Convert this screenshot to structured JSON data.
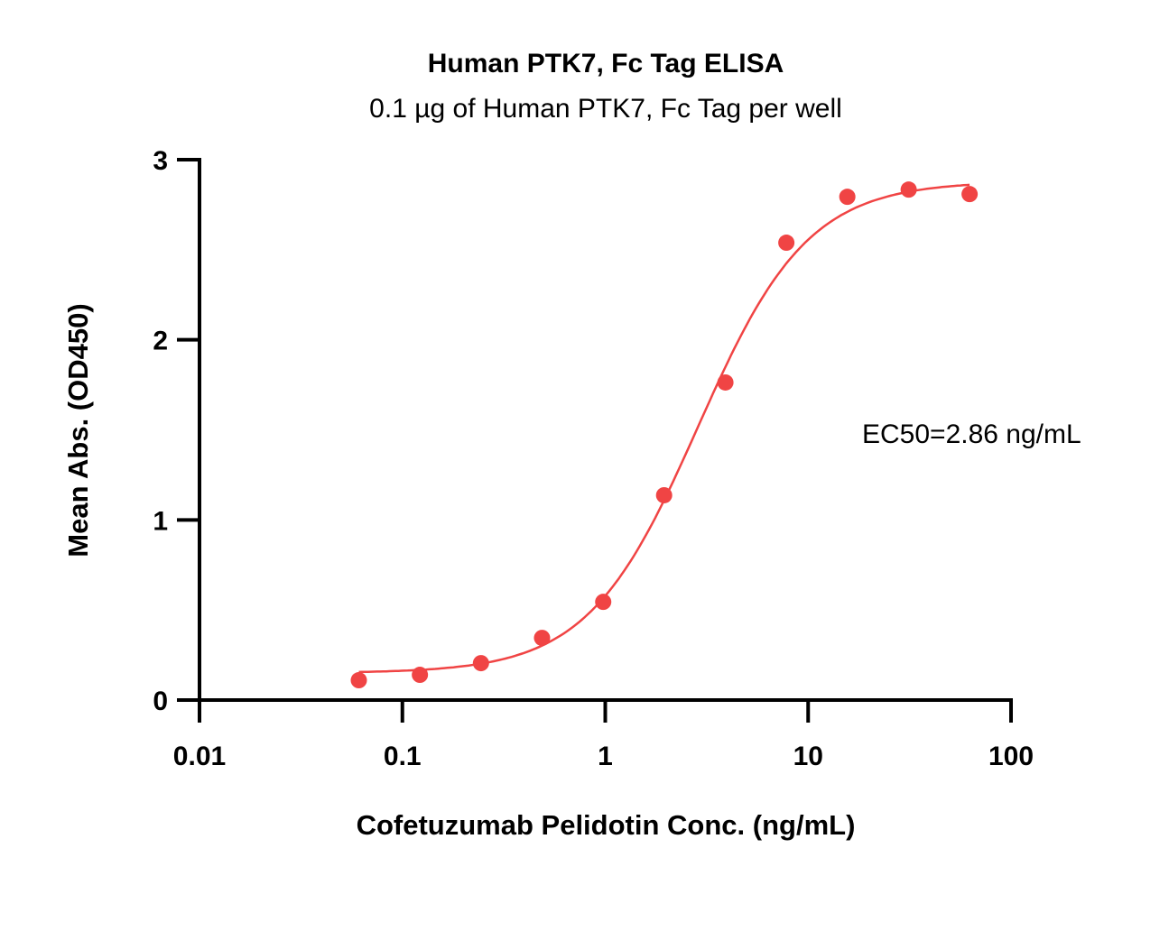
{
  "chart_data": {
    "type": "scatter",
    "title": "Human PTK7, Fc Tag ELISA",
    "subtitle": "0.1 µg of Human PTK7, Fc Tag per well",
    "xlabel": "Cofetuzumab Pelidotin Conc. (ng/mL)",
    "ylabel": "Mean Abs. (OD450)",
    "xscale": "log",
    "xlim": [
      0.01,
      100
    ],
    "ylim": [
      0,
      3
    ],
    "xticks": [
      "0.01",
      "0.1",
      "1",
      "10",
      "100"
    ],
    "xtick_values": [
      0.01,
      0.1,
      1,
      10,
      100
    ],
    "yticks": [
      "0",
      "1",
      "2",
      "3"
    ],
    "ytick_values": [
      0,
      1,
      2,
      3
    ],
    "grid": false,
    "color": "#F04444",
    "series": [
      {
        "name": "Human PTK7, Fc Tag",
        "x": [
          0.061,
          0.122,
          0.244,
          0.488,
          0.977,
          1.95,
          3.91,
          7.81,
          15.6,
          31.3,
          62.5
        ],
        "y": [
          0.11,
          0.14,
          0.205,
          0.345,
          0.545,
          1.137,
          1.763,
          2.539,
          2.794,
          2.834,
          2.809
        ]
      }
    ],
    "fit": {
      "model": "4PL",
      "bottom": 0.15,
      "top": 2.88,
      "ec50": 2.86,
      "hill": 1.6,
      "xrange": [
        0.061,
        62.5
      ]
    },
    "annotation": "EC50=2.86 ng/mL"
  }
}
